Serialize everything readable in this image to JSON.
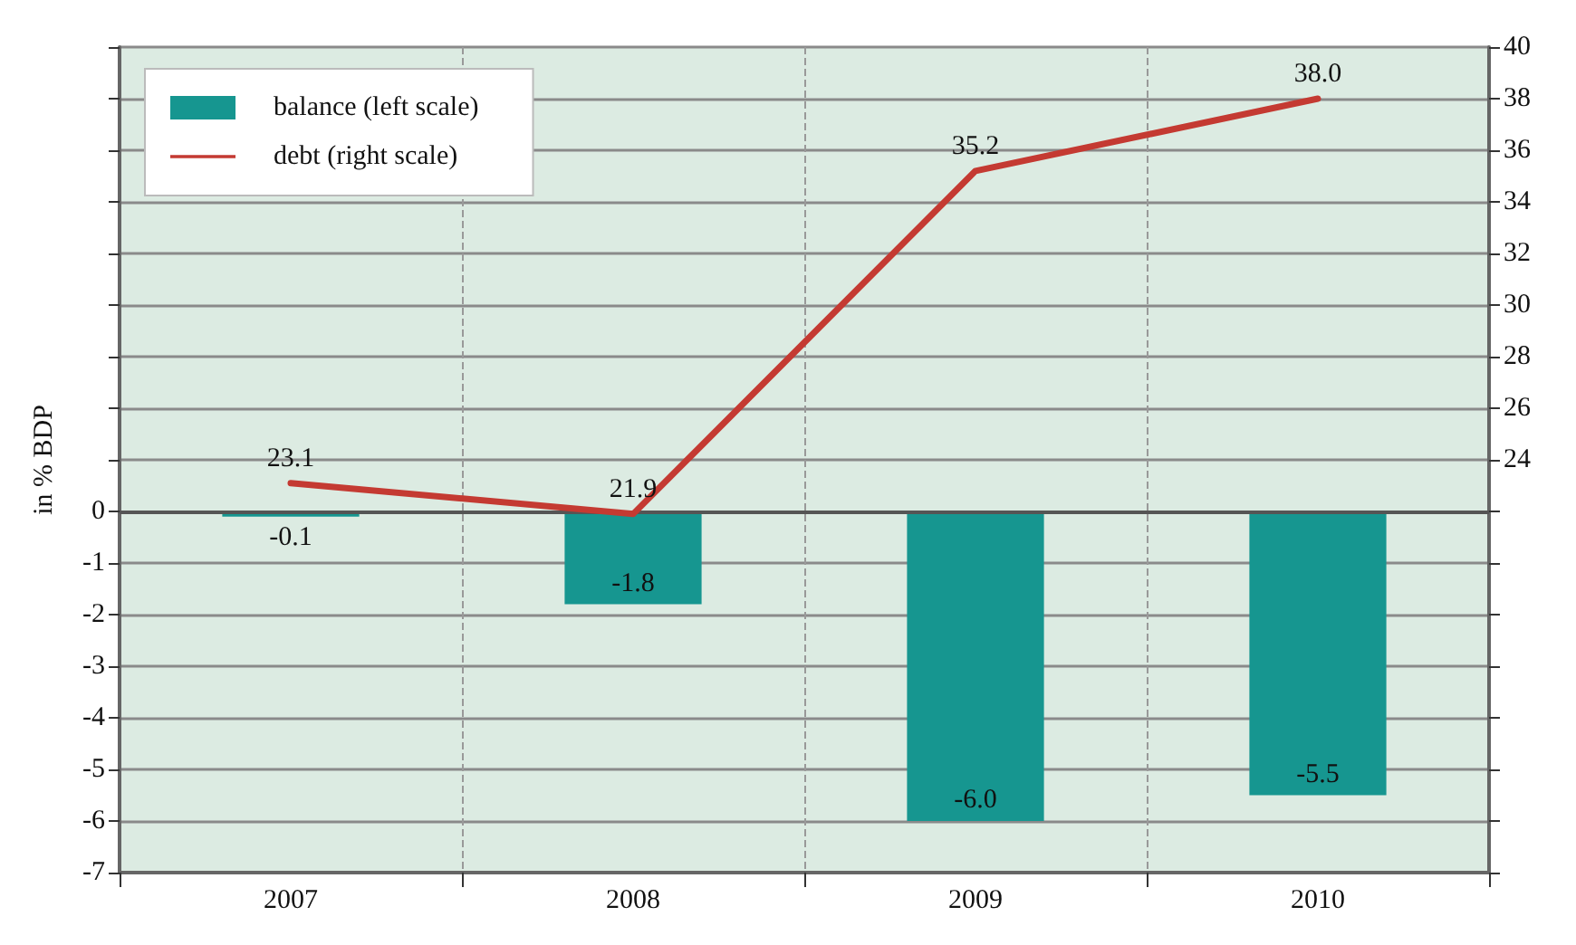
{
  "chart_data": {
    "type": "bar",
    "ylabel": "in % BDP",
    "categories": [
      "2007",
      "2008",
      "2009",
      "2010"
    ],
    "series": [
      {
        "name": "balance (left scale)",
        "color": "#169690",
        "values": [
          -0.1,
          -1.8,
          -6.0,
          -5.5
        ],
        "value_labels": [
          "-0.1",
          "-1.8",
          "-6.0",
          "-5.5"
        ]
      },
      {
        "name": "debt (right scale)",
        "type": "line",
        "axis": "y2",
        "color": "#c43a32",
        "values": [
          23.1,
          21.9,
          35.2,
          38.0
        ],
        "value_labels": [
          "23.1",
          "21.9",
          "35.2",
          "38.0"
        ]
      }
    ],
    "ylim": [
      -7,
      9
    ],
    "yticks": [
      -7,
      -6,
      -5,
      -4,
      -3,
      -2,
      -1,
      0,
      {
        "value": 1,
        "label": null
      },
      {
        "value": 2,
        "label": null
      },
      {
        "value": 3,
        "label": null
      },
      {
        "value": 4,
        "label": null
      },
      {
        "value": 5,
        "label": null
      },
      {
        "value": 6,
        "label": null
      },
      {
        "value": 7,
        "label": null
      },
      {
        "value": 8,
        "label": null
      },
      {
        "value": 9,
        "label": null
      }
    ],
    "y2lim": [
      8,
      40
    ],
    "y2ticks": [
      {
        "value": 8,
        "label": null
      },
      {
        "value": 10,
        "label": null
      },
      {
        "value": 12,
        "label": null
      },
      {
        "value": 14,
        "label": null
      },
      {
        "value": 16,
        "label": null
      },
      {
        "value": 18,
        "label": null
      },
      {
        "value": 20,
        "label": null
      },
      {
        "value": 22,
        "label": null
      },
      24,
      26,
      28,
      30,
      32,
      34,
      36,
      38,
      40
    ],
    "ref_lines": [
      {
        "axis": "y",
        "value": 0,
        "color": "#555555"
      }
    ],
    "grid": true,
    "legend": "top left",
    "marker": "none",
    "line_style": "solid"
  }
}
